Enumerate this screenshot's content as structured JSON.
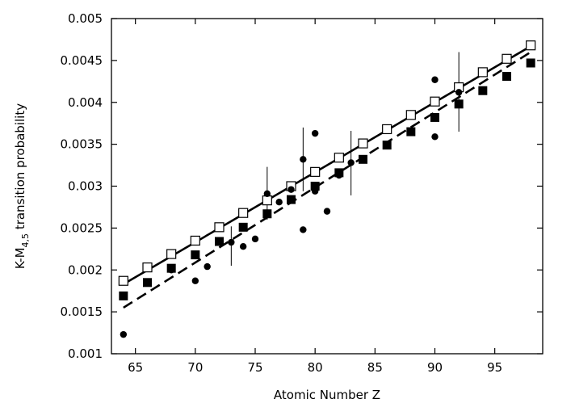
{
  "chart_data": {
    "type": "scatter",
    "xlabel": "Atomic Number Z",
    "ylabel": {
      "prefix": "K-M",
      "sub": "4,5",
      "suffix": " transition probability"
    },
    "xlim": [
      63,
      99
    ],
    "ylim": [
      0.001,
      0.005
    ],
    "xticks": [
      65,
      70,
      75,
      80,
      85,
      90,
      95
    ],
    "yticks": [
      0.001,
      0.0015,
      0.002,
      0.0025,
      0.003,
      0.0035,
      0.004,
      0.0045,
      0.005
    ],
    "ytick_labels": [
      "0.001",
      "0.0015",
      "0.002",
      "0.0025",
      "0.003",
      "0.0035",
      "0.004",
      "0.0045",
      "0.005"
    ],
    "grid": false,
    "series": [
      {
        "marker": "open-square",
        "color": "#000000",
        "points": [
          [
            64,
            0.00187
          ],
          [
            66,
            0.00203
          ],
          [
            68,
            0.00219
          ],
          [
            70,
            0.00235
          ],
          [
            72,
            0.00251
          ],
          [
            74,
            0.00268
          ],
          [
            76,
            0.00283
          ],
          [
            78,
            0.003
          ],
          [
            80,
            0.00317
          ],
          [
            82,
            0.00334
          ],
          [
            84,
            0.00351
          ],
          [
            86,
            0.00368
          ],
          [
            88,
            0.00385
          ],
          [
            90,
            0.00401
          ],
          [
            92,
            0.00418
          ],
          [
            94,
            0.00436
          ],
          [
            96,
            0.00452
          ],
          [
            98,
            0.00468
          ]
        ]
      },
      {
        "marker": "filled-square",
        "color": "#000000",
        "points": [
          [
            64,
            0.00169
          ],
          [
            66,
            0.00185
          ],
          [
            68,
            0.00202
          ],
          [
            70,
            0.00218
          ],
          [
            72,
            0.00234
          ],
          [
            74,
            0.00251
          ],
          [
            76,
            0.00267
          ],
          [
            78,
            0.00284
          ],
          [
            80,
            0.003
          ],
          [
            82,
            0.00316
          ],
          [
            84,
            0.00332
          ],
          [
            86,
            0.00349
          ],
          [
            88,
            0.00365
          ],
          [
            90,
            0.00382
          ],
          [
            92,
            0.00398
          ],
          [
            94,
            0.00414
          ],
          [
            96,
            0.00431
          ],
          [
            98,
            0.00447
          ]
        ]
      },
      {
        "marker": "filled-circle",
        "color": "#000000",
        "points": [
          [
            64,
            0.00123
          ],
          [
            68,
            0.002
          ],
          [
            70,
            0.00187
          ],
          [
            71,
            0.00204
          ],
          [
            73,
            0.00233
          ],
          [
            74,
            0.00228
          ],
          [
            75,
            0.00237
          ],
          [
            76,
            0.00291
          ],
          [
            77,
            0.00281
          ],
          [
            78,
            0.00296
          ],
          [
            79,
            0.00332
          ],
          [
            79,
            0.00248
          ],
          [
            80,
            0.00363
          ],
          [
            80,
            0.00294
          ],
          [
            81,
            0.0027
          ],
          [
            82,
            0.00313
          ],
          [
            83,
            0.00328
          ],
          [
            90,
            0.00427
          ],
          [
            90,
            0.00359
          ],
          [
            92,
            0.00412
          ]
        ]
      }
    ],
    "error_bars": [
      {
        "x": 73,
        "low": 0.00205,
        "high": 0.00252
      },
      {
        "x": 76,
        "low": 0.0026,
        "high": 0.00323
      },
      {
        "x": 79,
        "low": 0.00294,
        "high": 0.0037
      },
      {
        "x": 83,
        "low": 0.00289,
        "high": 0.00366
      },
      {
        "x": 92,
        "low": 0.00365,
        "high": 0.0046
      }
    ],
    "lines": [
      {
        "style": "solid",
        "color": "#000000",
        "from": [
          64,
          0.00183
        ],
        "to": [
          98,
          0.00467
        ]
      },
      {
        "style": "dashed",
        "color": "#000000",
        "from": [
          64,
          0.00155
        ],
        "to": [
          98,
          0.0046
        ]
      }
    ]
  }
}
